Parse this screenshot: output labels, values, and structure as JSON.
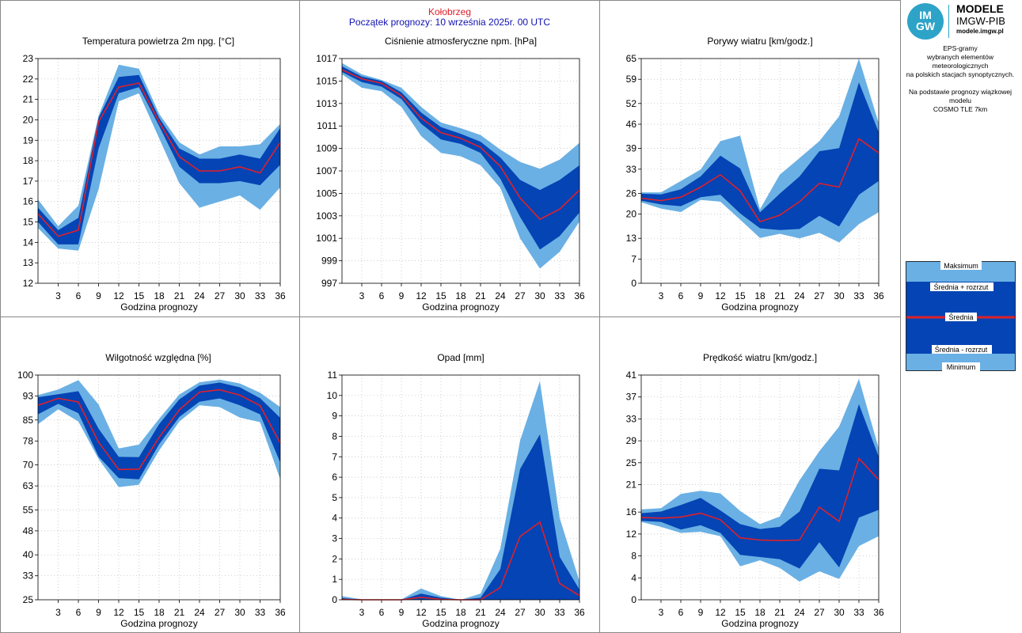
{
  "header": {
    "station": "Kołobrzeg",
    "forecast_start": "Początek prognozy: 10 września 2025r. 00 UTC"
  },
  "logo": {
    "circle_top": "IM",
    "circle_bottom": "GW",
    "name": "MODELE",
    "org": "IMGW-PIB",
    "url": "modele.imgw.pl",
    "color": "#2ea3c8"
  },
  "info": {
    "line1": "EPS-gramy",
    "line2": "wybranych elementów meteorologicznych",
    "line3": "na polskich stacjach  synoptycznych.",
    "line4": "Na podstawie prognozy wiązkowej modelu",
    "line5": "COSMO TLE 7km"
  },
  "legend": {
    "max": "Maksimum",
    "mean_plus": "Średnia + rozrzut",
    "mean": "Średnia",
    "mean_minus": "Średnia - rozrzut",
    "min": "Minimum"
  },
  "colors": {
    "outer_band": "#6ab0e4",
    "inner_band": "#0444b4",
    "mean_line": "#e0202a",
    "station_title": "#e0202a",
    "forecast_title": "#1010b0"
  },
  "chart_data": [
    {
      "type": "area",
      "title": "Temperatura powietrza 2m npg. [°C]",
      "xlabel": "Godzina prognozy",
      "x": [
        0,
        3,
        6,
        9,
        12,
        15,
        18,
        21,
        24,
        27,
        30,
        33,
        36
      ],
      "xticks": [
        "3",
        "6",
        "9",
        "12",
        "15",
        "18",
        "21",
        "24",
        "27",
        "30",
        "33",
        "36"
      ],
      "ylim": [
        12,
        23
      ],
      "yticks": [
        "12",
        "13",
        "14",
        "15",
        "16",
        "17",
        "18",
        "19",
        "20",
        "21",
        "22",
        "23"
      ],
      "max": [
        16.1,
        14.8,
        15.8,
        20.2,
        22.7,
        22.5,
        20.3,
        18.9,
        18.3,
        18.7,
        18.7,
        18.8,
        19.8
      ],
      "mean_plus": [
        15.7,
        14.6,
        15.2,
        20.1,
        22.1,
        22.2,
        20.1,
        18.6,
        18.1,
        18.1,
        18.3,
        18.1,
        19.6
      ],
      "mean": [
        15.4,
        14.3,
        14.6,
        19.9,
        21.6,
        21.8,
        19.9,
        18.2,
        17.5,
        17.5,
        17.7,
        17.4,
        18.9
      ],
      "mean_minus": [
        15.0,
        13.9,
        13.9,
        18.6,
        21.3,
        21.6,
        19.7,
        17.7,
        16.9,
        16.9,
        17.0,
        16.8,
        17.8
      ],
      "min": [
        14.7,
        13.7,
        13.6,
        16.6,
        20.9,
        21.3,
        19.1,
        16.9,
        15.7,
        16.0,
        16.3,
        15.6,
        16.7
      ]
    },
    {
      "type": "area",
      "title": "Ciśnienie atmosferyczne npm. [hPa]",
      "xlabel": "Godzina prognozy",
      "x": [
        0,
        3,
        6,
        9,
        12,
        15,
        18,
        21,
        24,
        27,
        30,
        33,
        36
      ],
      "xticks": [
        "3",
        "6",
        "9",
        "12",
        "15",
        "18",
        "21",
        "24",
        "27",
        "30",
        "33",
        "36"
      ],
      "ylim": [
        997,
        1017
      ],
      "yticks": [
        "997",
        "999",
        "1001",
        "1003",
        "1005",
        "1007",
        "1009",
        "1011",
        "1013",
        "1015",
        "1017"
      ],
      "max": [
        1016.6,
        1015.6,
        1015.1,
        1014.4,
        1012.7,
        1011.3,
        1010.8,
        1010.2,
        1008.9,
        1007.8,
        1007.2,
        1008.0,
        1009.5
      ],
      "mean_plus": [
        1016.3,
        1015.4,
        1015.0,
        1014.0,
        1012.2,
        1010.9,
        1010.3,
        1009.6,
        1008.2,
        1006.2,
        1005.3,
        1006.2,
        1007.5
      ],
      "mean": [
        1016.0,
        1015.2,
        1014.8,
        1013.7,
        1011.7,
        1010.4,
        1009.9,
        1009.1,
        1007.4,
        1004.6,
        1002.7,
        1003.6,
        1005.3
      ],
      "mean_minus": [
        1015.8,
        1014.9,
        1014.5,
        1013.4,
        1011.2,
        1009.8,
        1009.4,
        1008.6,
        1006.3,
        1002.9,
        1000.0,
        1001.2,
        1003.3
      ],
      "min": [
        1015.6,
        1014.4,
        1014.1,
        1012.7,
        1010.1,
        1008.6,
        1008.3,
        1007.5,
        1005.5,
        1001.0,
        998.3,
        999.8,
        1002.5
      ]
    },
    {
      "type": "area",
      "title": "Porywy wiatru [km/godz.]",
      "xlabel": "Godzina prognozy",
      "x": [
        0,
        3,
        6,
        9,
        12,
        15,
        18,
        21,
        24,
        27,
        30,
        33,
        36
      ],
      "xticks": [
        "3",
        "6",
        "9",
        "12",
        "15",
        "18",
        "21",
        "24",
        "27",
        "30",
        "33",
        "36"
      ],
      "ylim": [
        0,
        65
      ],
      "yticks": [
        "0",
        "7",
        "13",
        "20",
        "26",
        "33",
        "39",
        "46",
        "52",
        "59",
        "65"
      ],
      "max": [
        26.3,
        26.3,
        29.6,
        32.9,
        41.1,
        42.7,
        21.4,
        31.4,
        36.2,
        41.1,
        48.3,
        65.0,
        46.3
      ],
      "mean_plus": [
        25.9,
        25.7,
        27.2,
        30.9,
        36.9,
        33.2,
        20.5,
        25.9,
        30.9,
        38.2,
        39.1,
        58.1,
        43.7
      ],
      "mean": [
        24.6,
        23.9,
        24.9,
        27.8,
        31.4,
        26.7,
        17.8,
        19.7,
        23.6,
        28.9,
        27.8,
        41.8,
        37.7
      ],
      "mean_minus": [
        23.9,
        22.8,
        22.3,
        24.9,
        25.6,
        20.2,
        15.9,
        15.4,
        15.7,
        19.5,
        16.4,
        25.6,
        29.6
      ],
      "min": [
        23.4,
        21.6,
        20.6,
        24.1,
        23.6,
        18.4,
        13.1,
        14.3,
        13.0,
        14.6,
        11.8,
        17.1,
        20.6
      ]
    },
    {
      "type": "area",
      "title": "Wilgotność względna [%]",
      "xlabel": "Godzina prognozy",
      "x": [
        0,
        3,
        6,
        9,
        12,
        15,
        18,
        21,
        24,
        27,
        30,
        33,
        36
      ],
      "xticks": [
        "3",
        "6",
        "9",
        "12",
        "15",
        "18",
        "21",
        "24",
        "27",
        "30",
        "33",
        "36"
      ],
      "ylim": [
        25,
        100
      ],
      "yticks": [
        "25",
        "33",
        "40",
        "48",
        "55",
        "63",
        "70",
        "78",
        "85",
        "93",
        "100"
      ],
      "max": [
        93.3,
        95.2,
        98.3,
        90.2,
        75.5,
        76.8,
        85.4,
        93.5,
        97.6,
        98.5,
        97.2,
        94.1,
        89.3
      ],
      "mean_plus": [
        92.6,
        93.6,
        94.6,
        82.1,
        72.7,
        72.6,
        83.6,
        91.9,
        96.5,
        97.5,
        95.9,
        92.3,
        85.7
      ],
      "mean": [
        89.9,
        92.2,
        91.0,
        77.6,
        68.5,
        68.6,
        79.2,
        88.4,
        94.3,
        95.1,
        93.3,
        89.8,
        77.3
      ],
      "mean_minus": [
        86.9,
        90.4,
        87.3,
        72.8,
        65.6,
        65.2,
        76.9,
        86.0,
        91.1,
        92.2,
        89.9,
        86.9,
        70.8
      ],
      "min": [
        83.6,
        88.6,
        84.5,
        72.0,
        62.6,
        63.4,
        74.8,
        84.5,
        89.9,
        89.3,
        85.8,
        84.3,
        65.2
      ]
    },
    {
      "type": "area",
      "title": "Opad [mm]",
      "xlabel": "Godzina prognozy",
      "x": [
        0,
        3,
        6,
        9,
        12,
        15,
        18,
        21,
        24,
        27,
        30,
        33,
        36
      ],
      "xticks": [
        "3",
        "6",
        "9",
        "12",
        "15",
        "18",
        "21",
        "24",
        "27",
        "30",
        "33",
        "36"
      ],
      "ylim": [
        0,
        11
      ],
      "yticks": [
        "0",
        "1",
        "2",
        "3",
        "4",
        "5",
        "6",
        "7",
        "8",
        "9",
        "10",
        "11"
      ],
      "ytick_values": [
        0,
        1,
        2,
        3,
        4,
        5,
        6,
        7,
        8,
        9,
        10,
        11
      ],
      "max": [
        0.18,
        0.02,
        0.0,
        0.02,
        0.55,
        0.18,
        0.0,
        0.3,
        2.5,
        7.8,
        10.7,
        4.0,
        0.9
      ],
      "mean_plus": [
        0.08,
        0.0,
        0.0,
        0.0,
        0.3,
        0.1,
        0.0,
        0.1,
        1.5,
        6.4,
        8.1,
        2.1,
        0.5
      ],
      "mean": [
        0.02,
        0.0,
        0.0,
        0.0,
        0.12,
        0.02,
        0.0,
        0.0,
        0.6,
        3.1,
        3.8,
        0.8,
        0.2
      ],
      "mean_minus": [
        0.0,
        0.0,
        0.0,
        0.0,
        0.0,
        0.0,
        0.0,
        0.0,
        0.0,
        0.0,
        0.0,
        0.0,
        0.0
      ],
      "min": [
        0.0,
        0.0,
        0.0,
        0.0,
        0.0,
        0.0,
        0.0,
        0.0,
        0.0,
        1.0,
        0.4,
        0.0,
        0.0
      ]
    },
    {
      "type": "area",
      "title": "Prędkość wiatru [km/godz.]",
      "xlabel": "Godzina prognozy",
      "x": [
        0,
        3,
        6,
        9,
        12,
        15,
        18,
        21,
        24,
        27,
        30,
        33,
        36
      ],
      "xticks": [
        "3",
        "6",
        "9",
        "12",
        "15",
        "18",
        "21",
        "24",
        "27",
        "30",
        "33",
        "36"
      ],
      "ylim": [
        0,
        41
      ],
      "yticks": [
        "0",
        "4",
        "8",
        "12",
        "16",
        "21",
        "25",
        "29",
        "33",
        "37",
        "41"
      ],
      "max": [
        16.5,
        16.7,
        19.3,
        19.9,
        19.4,
        16.2,
        13.8,
        15.2,
        21.8,
        27.1,
        31.6,
        40.3,
        27.6
      ],
      "mean_plus": [
        15.8,
        16.1,
        17.3,
        18.6,
        16.3,
        13.8,
        12.9,
        13.3,
        16.1,
        23.9,
        23.6,
        35.7,
        26.1
      ],
      "mean": [
        15.0,
        14.9,
        15.1,
        15.8,
        14.6,
        11.3,
        10.9,
        10.8,
        10.9,
        16.9,
        14.3,
        25.8,
        21.9
      ],
      "mean_minus": [
        14.4,
        14.2,
        12.8,
        13.6,
        12.2,
        8.2,
        7.8,
        7.4,
        5.7,
        10.5,
        5.9,
        15.0,
        16.4
      ],
      "min": [
        14.2,
        13.3,
        12.2,
        12.4,
        11.6,
        6.1,
        7.2,
        5.8,
        3.3,
        5.2,
        3.8,
        9.8,
        11.6
      ]
    }
  ]
}
